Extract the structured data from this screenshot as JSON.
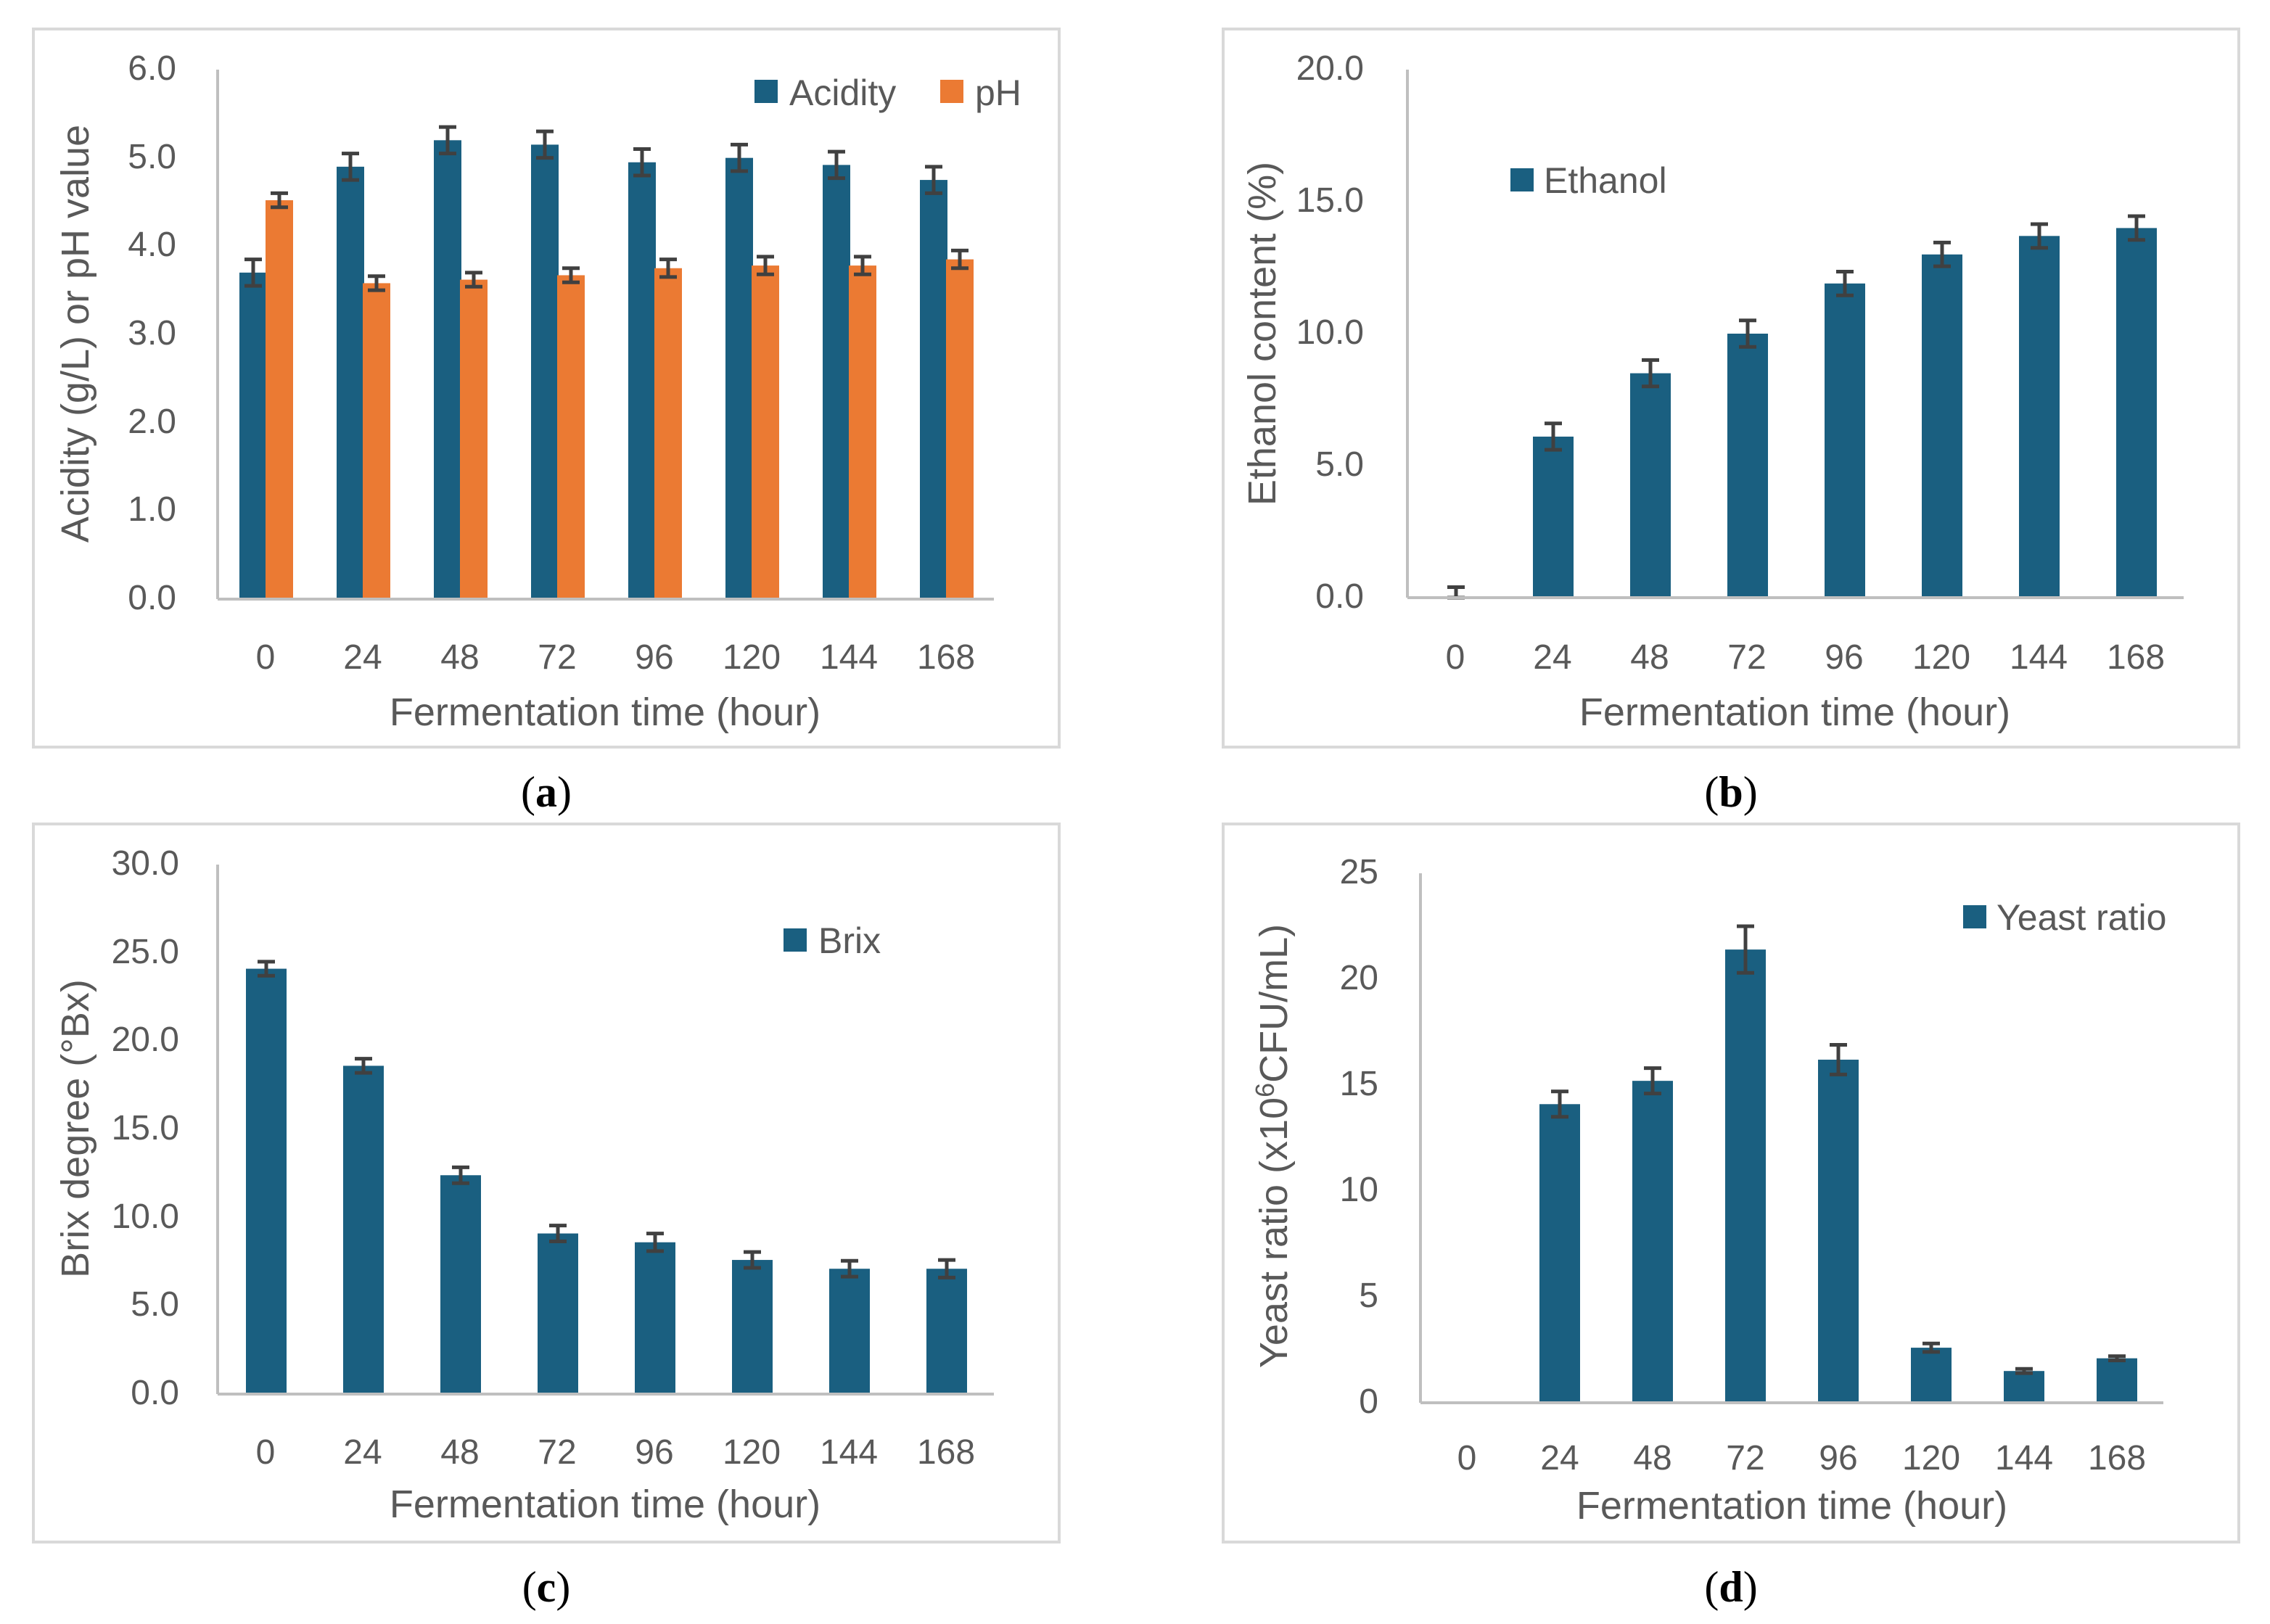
{
  "colors": {
    "blue": "#1a5f80",
    "orange": "#eb7a33",
    "error": "#404040"
  },
  "chart_data": [
    {
      "type": "bar",
      "id": "a",
      "caption": "a",
      "xlabel": "Fermentation time (hour)",
      "ylabel": "Acidity (g/L) or pH value",
      "categories": [
        "0",
        "24",
        "48",
        "72",
        "96",
        "120",
        "144",
        "168"
      ],
      "ylim": [
        0,
        6
      ],
      "yticks": [
        "0.0",
        "1.0",
        "2.0",
        "3.0",
        "4.0",
        "5.0",
        "6.0"
      ],
      "legend_position": "top-right",
      "series": [
        {
          "name": "Acidity",
          "color": "#1a5f80",
          "values": [
            3.7,
            4.9,
            5.2,
            5.15,
            4.95,
            5.0,
            4.92,
            4.75
          ],
          "errors": [
            0.15,
            0.15,
            0.15,
            0.15,
            0.15,
            0.15,
            0.15,
            0.15
          ]
        },
        {
          "name": "pH",
          "color": "#eb7a33",
          "values": [
            4.52,
            3.58,
            3.62,
            3.67,
            3.75,
            3.78,
            3.78,
            3.85
          ],
          "errors": [
            0.08,
            0.08,
            0.08,
            0.08,
            0.1,
            0.1,
            0.1,
            0.1
          ]
        }
      ]
    },
    {
      "type": "bar",
      "id": "b",
      "caption": "b",
      "xlabel": "Fermentation time (hour)",
      "ylabel": "Ethanol content (%)",
      "categories": [
        "0",
        "24",
        "48",
        "72",
        "96",
        "120",
        "144",
        "168"
      ],
      "ylim": [
        0,
        20
      ],
      "yticks": [
        "0.0",
        "5.0",
        "10.0",
        "15.0",
        "20.0"
      ],
      "legend_position": "top-left",
      "series": [
        {
          "name": "Ethanol",
          "color": "#1a5f80",
          "values": [
            0,
            6.1,
            8.5,
            10.0,
            11.9,
            13.0,
            13.7,
            14.0
          ],
          "errors": [
            0.4,
            0.5,
            0.5,
            0.5,
            0.45,
            0.45,
            0.45,
            0.45
          ]
        }
      ]
    },
    {
      "type": "bar",
      "id": "c",
      "caption": "c",
      "xlabel": "Fermentation time (hour)",
      "ylabel": "Brix degree (°Bx)",
      "categories": [
        "0",
        "24",
        "48",
        "72",
        "96",
        "120",
        "144",
        "168"
      ],
      "ylim": [
        0,
        30
      ],
      "yticks": [
        "0.0",
        "5.0",
        "10.0",
        "15.0",
        "20.0",
        "25.0",
        "30.0"
      ],
      "legend_position": "top-right",
      "series": [
        {
          "name": "Brix",
          "color": "#1a5f80",
          "values": [
            24.1,
            18.6,
            12.4,
            9.1,
            8.6,
            7.6,
            7.1,
            7.1
          ],
          "errors": [
            0.4,
            0.4,
            0.45,
            0.45,
            0.5,
            0.45,
            0.45,
            0.5
          ]
        }
      ]
    },
    {
      "type": "bar",
      "id": "d",
      "caption": "d",
      "xlabel": "Fermentation time (hour)",
      "ylabel_prefix": "Yeast ratio (x10",
      "ylabel_sup": "6",
      "ylabel_suffix": "CFU/mL)",
      "categories": [
        "0",
        "24",
        "48",
        "72",
        "96",
        "120",
        "144",
        "168"
      ],
      "ylim": [
        0,
        25
      ],
      "yticks": [
        "0",
        "5",
        "10",
        "15",
        "20",
        "25"
      ],
      "legend_position": "top-right",
      "series": [
        {
          "name": "Yeast ratio",
          "color": "#1a5f80",
          "values": [
            0,
            14.1,
            15.2,
            21.4,
            16.2,
            2.6,
            1.5,
            2.1
          ],
          "errors": [
            0,
            0.6,
            0.6,
            1.1,
            0.7,
            0.2,
            0.1,
            0.1
          ]
        }
      ]
    }
  ]
}
